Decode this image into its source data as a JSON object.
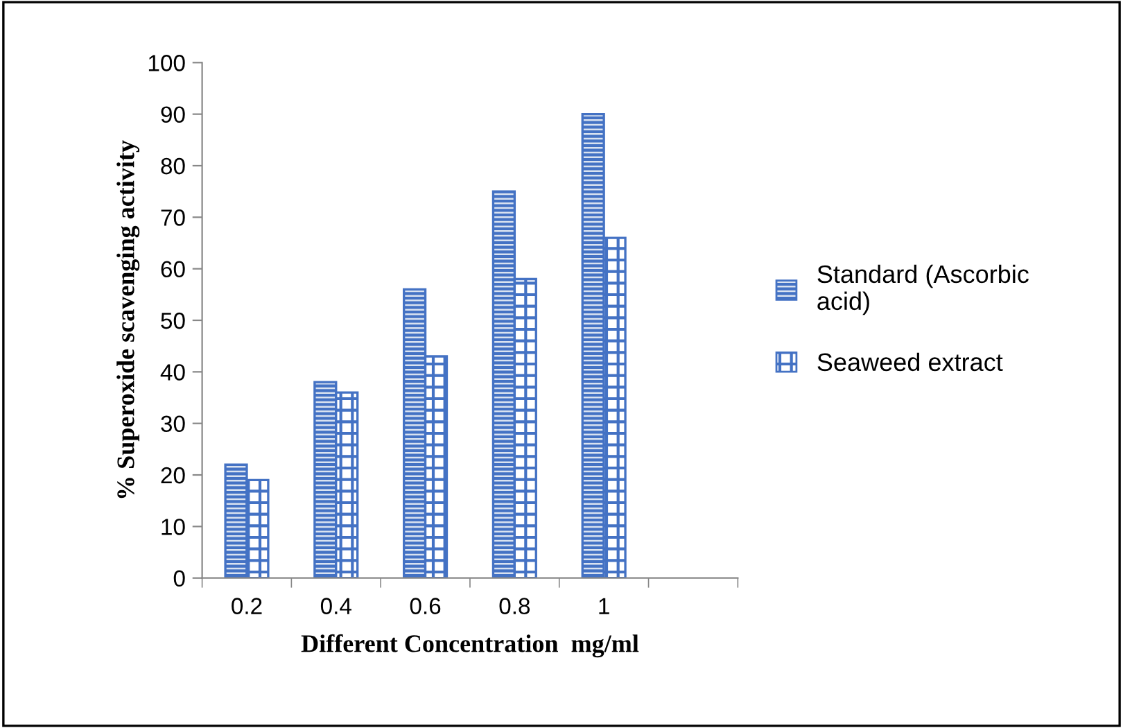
{
  "chart_data": {
    "type": "bar",
    "categories": [
      "0.2",
      "0.4",
      "0.6",
      "0.8",
      "1",
      null
    ],
    "series": [
      {
        "name": "Standard (Ascorbic\nacid)",
        "color": "#4472c4",
        "values": [
          22,
          38,
          56,
          75,
          90,
          null
        ]
      },
      {
        "name": "Seaweed extract",
        "color": "#4472c4",
        "values": [
          19,
          36,
          43,
          58,
          66,
          null
        ]
      }
    ],
    "xlabel": "Different Concentration  mg/ml",
    "ylabel": "% Superoxide scavenging activity",
    "ylim": [
      0,
      100
    ],
    "yticks": [
      0,
      10,
      20,
      30,
      40,
      50,
      60,
      70,
      80,
      90,
      100
    ],
    "grid": false,
    "legend": "right"
  }
}
